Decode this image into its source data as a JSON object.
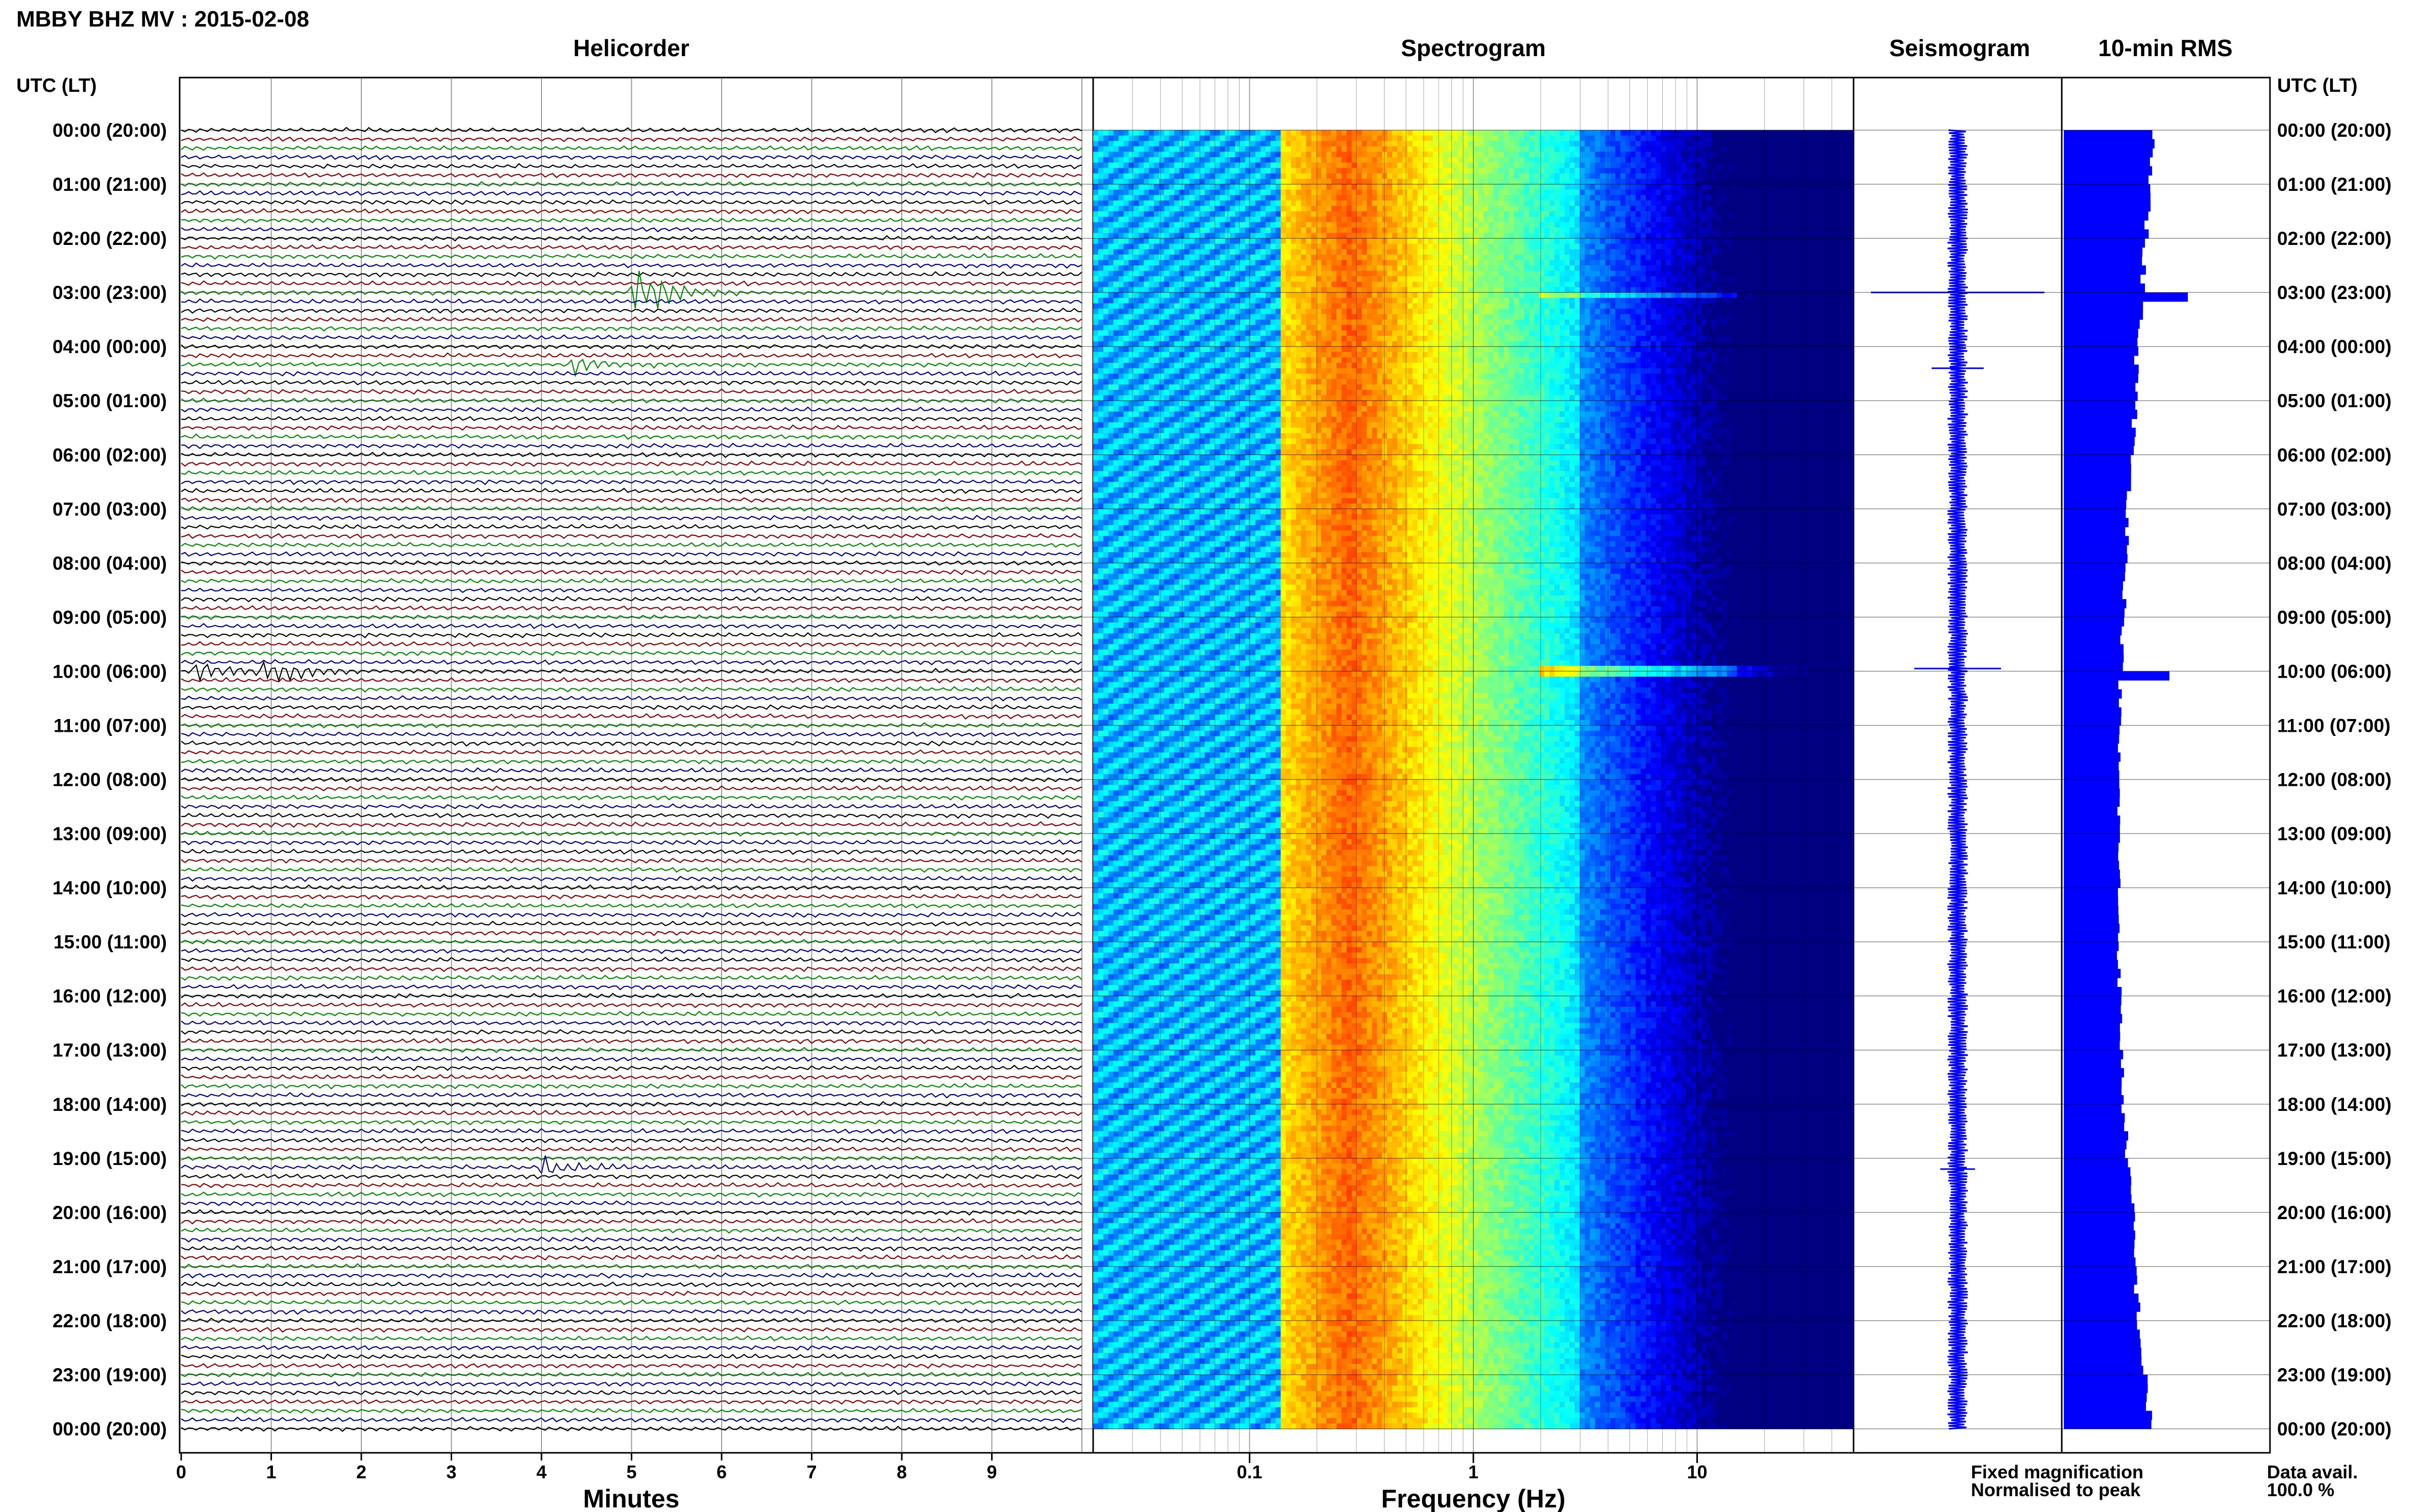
{
  "page_title": "MBBY BHZ MV : 2015-02-08",
  "panels": {
    "helicorder": "Helicorder",
    "spectrogram": "Spectrogram",
    "seismogram": "Seismogram",
    "rms": "10-min RMS"
  },
  "time_axis_label": "UTC (LT)",
  "xlabel_minutes": "Minutes",
  "xlabel_frequency": "Frequency (Hz)",
  "legend": {
    "fixed": "Fixed magnification",
    "normalised": "Normalised to peak",
    "fixed_color": "#0000ff",
    "normalised_color": "#ff0000"
  },
  "data_avail_label": "Data avail.",
  "data_avail_value": "100.0 %",
  "colors": {
    "trace_cycle": [
      "#000000",
      "#8b0000",
      "#008b00",
      "#00008b"
    ],
    "rms_bar": "#0000ff",
    "seismogram": "#0000ff"
  },
  "chart_data": [
    {
      "type": "line",
      "name": "Helicorder",
      "xlabel": "Minutes",
      "xticks": [
        0,
        1,
        2,
        3,
        4,
        5,
        6,
        7,
        8,
        9
      ],
      "xlim": [
        0,
        10
      ],
      "rows_per_hour": 6,
      "hours": 24,
      "time_labels": [
        "00:00 (20:00)",
        "01:00 (21:00)",
        "02:00 (22:00)",
        "03:00 (23:00)",
        "04:00 (00:00)",
        "05:00 (01:00)",
        "06:00 (02:00)",
        "07:00 (03:00)",
        "08:00 (04:00)",
        "09:00 (05:00)",
        "10:00 (06:00)",
        "11:00 (07:00)",
        "12:00 (08:00)",
        "13:00 (09:00)",
        "14:00 (10:00)",
        "15:00 (11:00)",
        "16:00 (12:00)",
        "17:00 (13:00)",
        "18:00 (14:00)",
        "19:00 (15:00)",
        "20:00 (16:00)",
        "21:00 (17:00)",
        "22:00 (18:00)",
        "23:00 (19:00)",
        "00:00 (20:00)"
      ],
      "events": [
        {
          "hour": 3.0,
          "minute": 5.0,
          "amplitude": 5
        },
        {
          "hour": 4.3,
          "minute": 4.3,
          "amplitude": 1.8
        },
        {
          "hour": 9.95,
          "minute": 0.1,
          "amplitude": 2.5
        },
        {
          "hour": 9.95,
          "minute": 0.9,
          "amplitude": 2.5
        },
        {
          "hour": 19.1,
          "minute": 4.0,
          "amplitude": 1.6
        }
      ]
    },
    {
      "type": "heatmap",
      "name": "Spectrogram",
      "xlabel": "Frequency (Hz)",
      "xscale": "log",
      "xlim": [
        0.02,
        50
      ],
      "xticks": [
        0.1,
        1,
        10
      ],
      "xticklabels": [
        "0.1",
        "1",
        "10"
      ],
      "peak_band_hz": [
        0.15,
        0.6
      ],
      "colormap": "jet"
    },
    {
      "type": "line",
      "name": "Seismogram",
      "spikes": [
        {
          "hour": 3.0,
          "amplitude": 1.0
        },
        {
          "hour": 4.4,
          "amplitude": 0.3
        },
        {
          "hour": 9.95,
          "amplitude": 0.5
        },
        {
          "hour": 19.2,
          "amplitude": 0.2
        }
      ]
    },
    {
      "type": "bar",
      "name": "10-min RMS",
      "orientation": "horizontal",
      "hourly_values": [
        1.0,
        0.95,
        0.88,
        0.85,
        0.8,
        0.78,
        0.74,
        0.7,
        0.68,
        0.65,
        0.62,
        0.6,
        0.6,
        0.6,
        0.6,
        0.6,
        0.61,
        0.63,
        0.65,
        0.7,
        0.75,
        0.78,
        0.82,
        0.88,
        0.96
      ],
      "spikes": [
        {
          "hour": 3.0,
          "value": 1.35
        },
        {
          "hour": 9.95,
          "value": 1.15
        }
      ]
    }
  ]
}
